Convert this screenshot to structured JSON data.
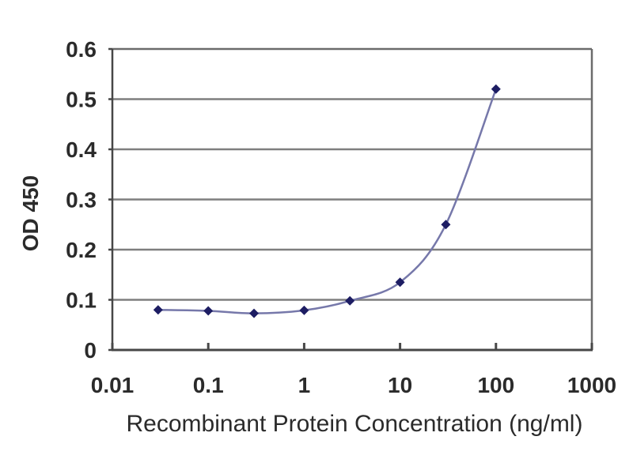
{
  "page": {
    "background": "#ffffff"
  },
  "chart_data": {
    "type": "line",
    "title": "",
    "xlabel": "Recombinant Protein Concentration (ng/ml)",
    "ylabel": "OD 450",
    "x_scale": "log",
    "xlim": [
      0.01,
      1000
    ],
    "ylim": [
      0,
      0.6
    ],
    "x_ticks": [
      0.01,
      0.1,
      1,
      10,
      100,
      1000
    ],
    "x_tick_labels": [
      "0.01",
      "0.1",
      "1",
      "10",
      "100",
      "1000"
    ],
    "y_ticks": [
      0,
      0.1,
      0.2,
      0.3,
      0.4,
      0.5,
      0.6
    ],
    "y_tick_labels": [
      "0",
      "0.1",
      "0.2",
      "0.3",
      "0.4",
      "0.5",
      "0.6"
    ],
    "grid": "horizontal",
    "legend": "none",
    "series": [
      {
        "name": "OD 450",
        "x": [
          0.03,
          0.1,
          0.3,
          1,
          3,
          10,
          30,
          100
        ],
        "y": [
          0.08,
          0.078,
          0.073,
          0.079,
          0.098,
          0.135,
          0.25,
          0.52
        ],
        "marker": "diamond",
        "line_color": "#7678aa",
        "marker_color": "#1d1d63"
      }
    ]
  },
  "colors": {
    "gridline": "#7e7e7e",
    "axis_main": "#474747",
    "axis_far": "#6b6b6b",
    "text": "#2b2b2b"
  }
}
